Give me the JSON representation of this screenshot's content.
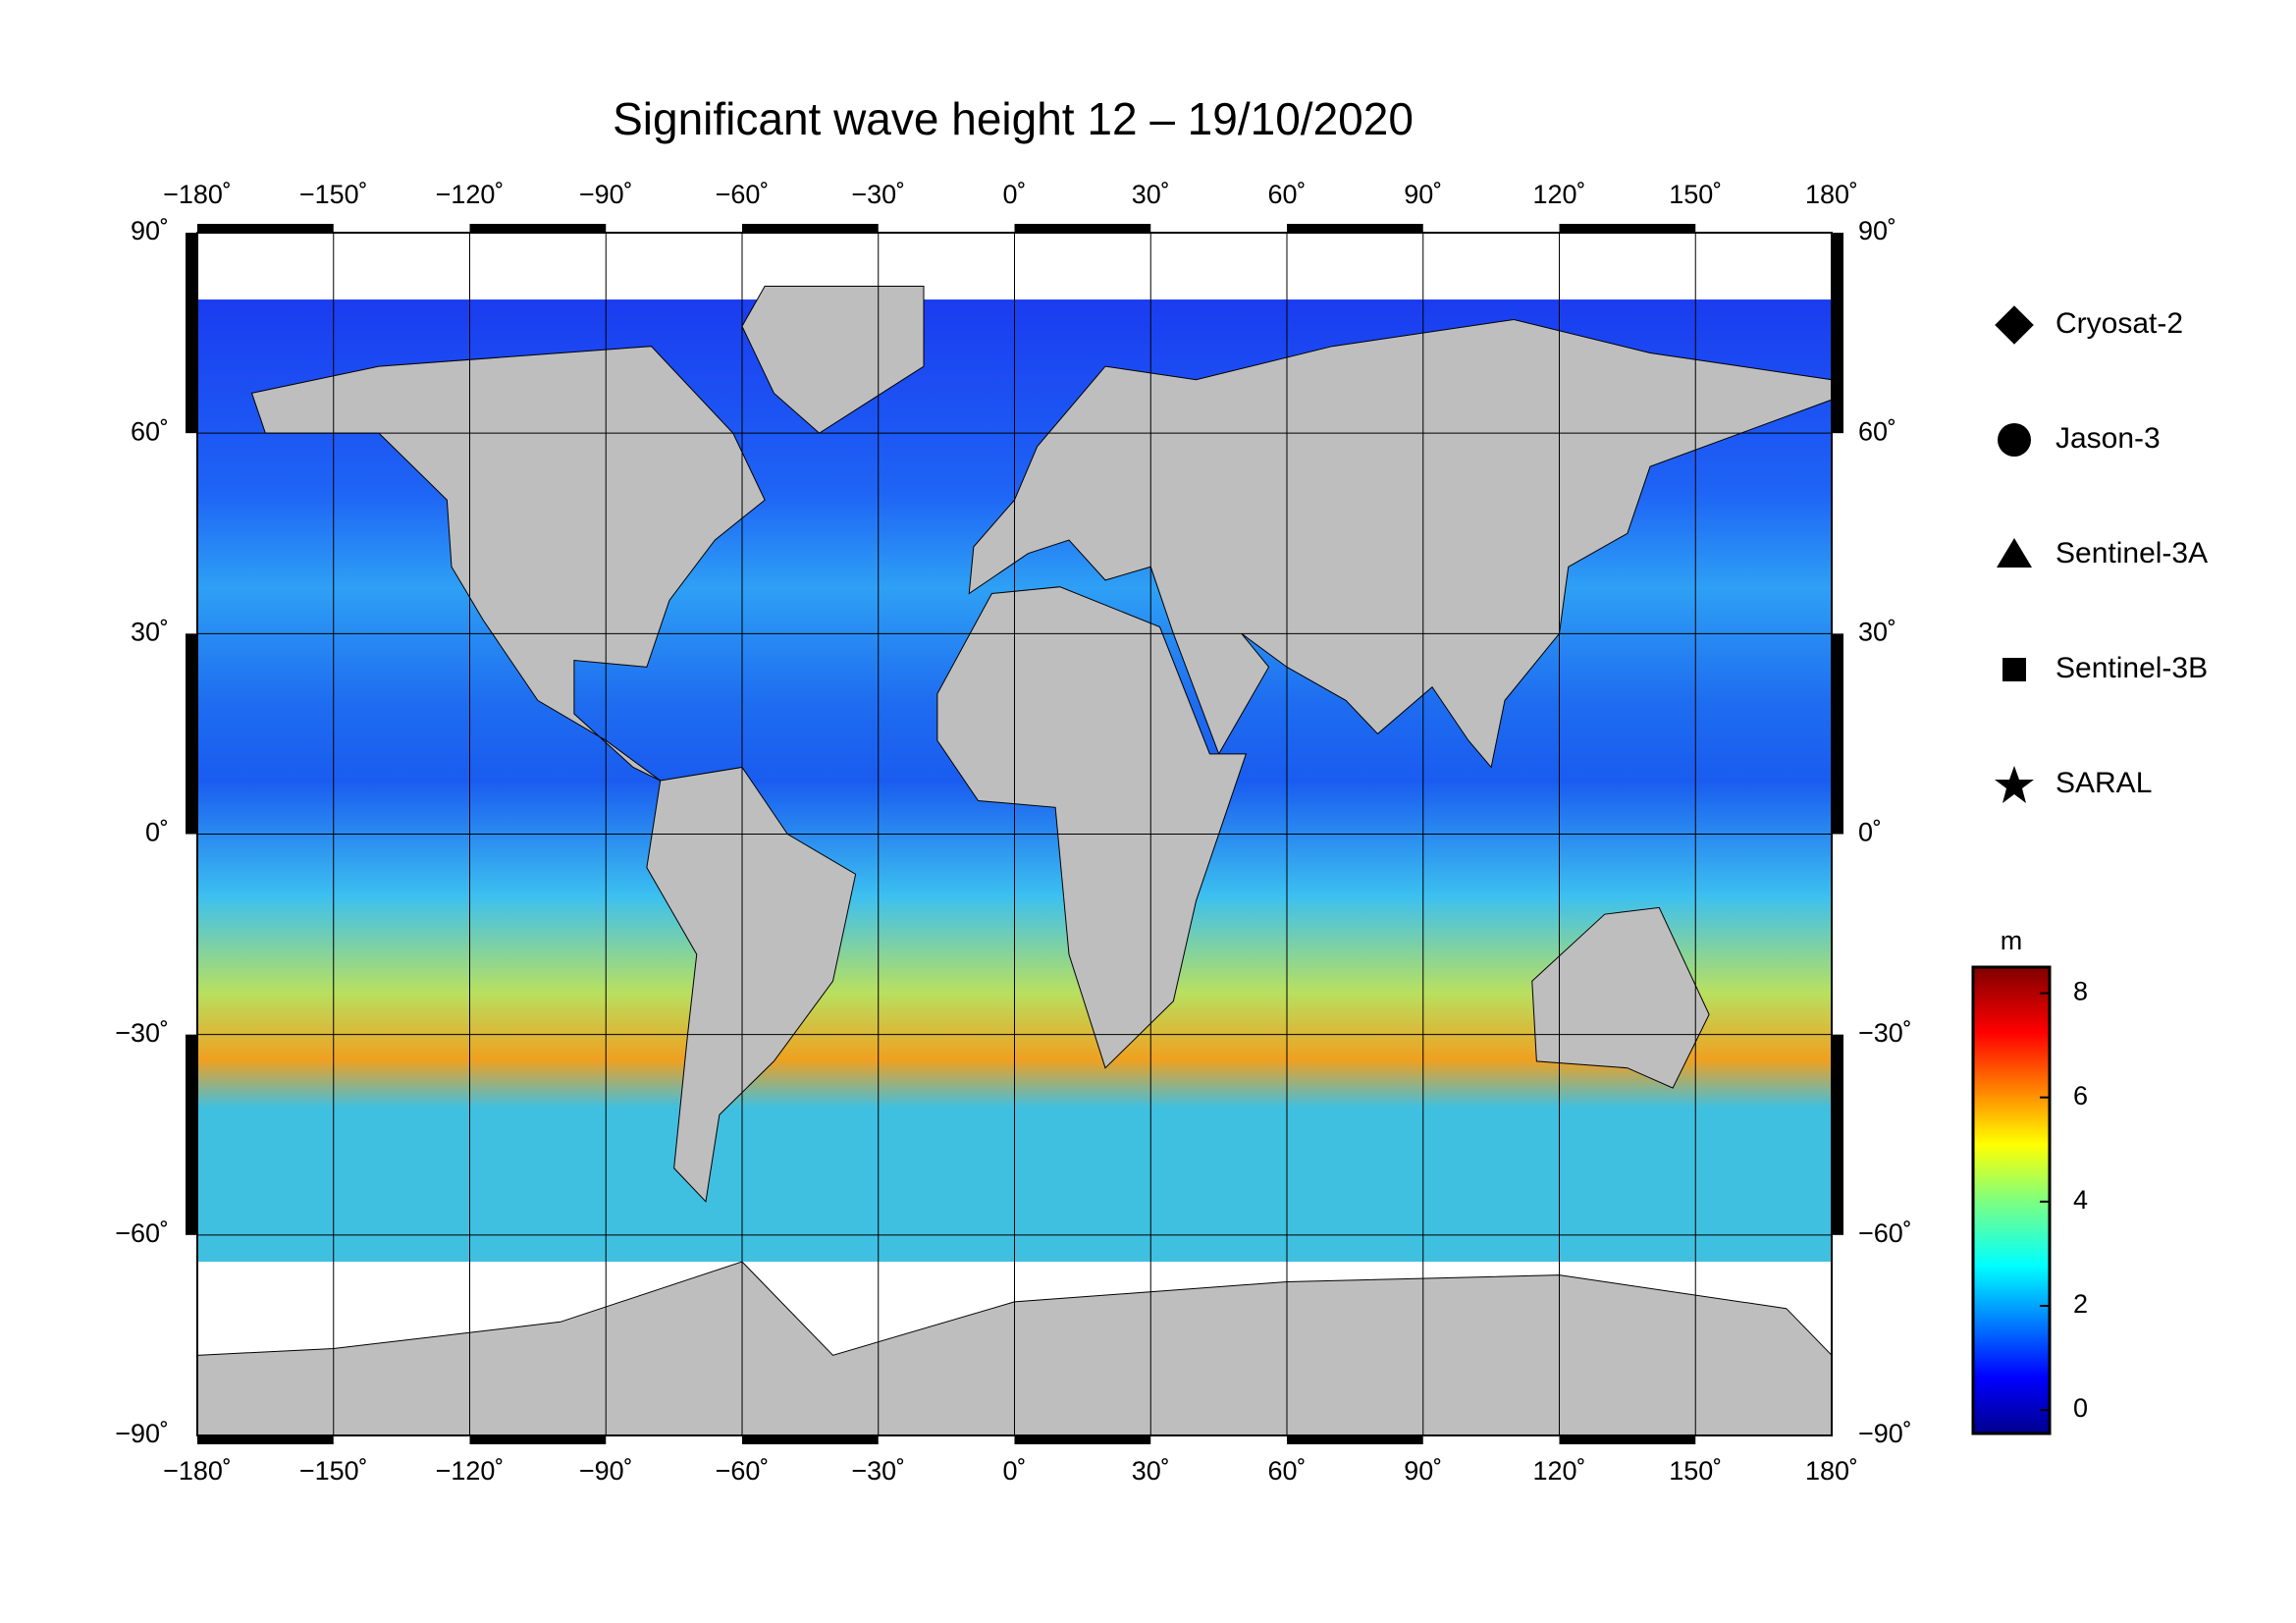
{
  "chart_data": {
    "type": "map",
    "title": "Significant wave height 12 – 19/10/2020",
    "xlim": [
      -180,
      180
    ],
    "ylim": [
      -90,
      90
    ],
    "xticks": [
      {
        "value": -180,
        "label": "−180˚"
      },
      {
        "value": -150,
        "label": "−150˚"
      },
      {
        "value": -120,
        "label": "−120˚"
      },
      {
        "value": -90,
        "label": "−90˚"
      },
      {
        "value": -60,
        "label": "−60˚"
      },
      {
        "value": -30,
        "label": "−30˚"
      },
      {
        "value": 0,
        "label": "0˚"
      },
      {
        "value": 30,
        "label": "30˚"
      },
      {
        "value": 60,
        "label": "60˚"
      },
      {
        "value": 90,
        "label": "90˚"
      },
      {
        "value": 120,
        "label": "120˚"
      },
      {
        "value": 150,
        "label": "150˚"
      },
      {
        "value": 180,
        "label": "180˚"
      }
    ],
    "yticks": [
      {
        "value": 90,
        "label": "90˚"
      },
      {
        "value": 60,
        "label": "60˚"
      },
      {
        "value": 30,
        "label": "30˚"
      },
      {
        "value": 0,
        "label": "0˚"
      },
      {
        "value": -30,
        "label": "−30˚"
      },
      {
        "value": -60,
        "label": "−60˚"
      },
      {
        "value": -90,
        "label": "−90˚"
      }
    ],
    "grid": true,
    "legend": [
      "Cryosat-2",
      "Jason-3",
      "Sentinel-3A",
      "Sentinel-3B",
      "SARAL"
    ],
    "colorbar": {
      "label": "m",
      "lim": [
        -0.45,
        8.5
      ],
      "ticks": [
        0,
        2,
        4,
        6,
        8
      ]
    }
  }
}
